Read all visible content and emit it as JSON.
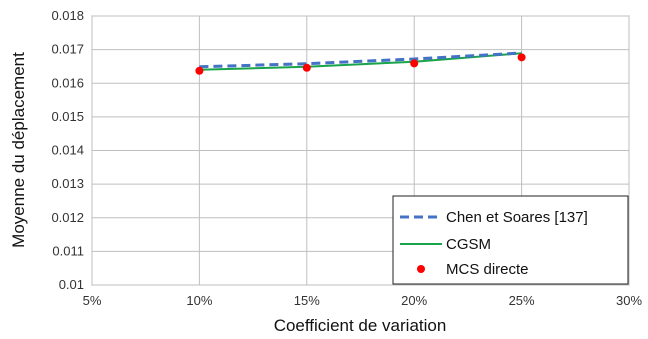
{
  "chart_data": {
    "type": "line",
    "xlabel": "Coefficient de variation",
    "ylabel": "Moyenne du déplacement",
    "x_ticks": [
      "5%",
      "10%",
      "15%",
      "20%",
      "25%",
      "30%"
    ],
    "y_ticks": [
      "0.01",
      "0.011",
      "0.012",
      "0.013",
      "0.014",
      "0.015",
      "0.016",
      "0.017",
      "0.018"
    ],
    "xlim": [
      0.05,
      0.3
    ],
    "ylim": [
      0.01,
      0.018
    ],
    "grid": true,
    "legend_position": "bottom-right",
    "series": [
      {
        "name": "Chen et Soares [137]",
        "style": "dashed",
        "color": "#4472c4",
        "x": [
          0.1,
          0.15,
          0.2,
          0.25
        ],
        "y": [
          0.01649,
          0.01658,
          0.01672,
          0.0169
        ]
      },
      {
        "name": "CGSM",
        "style": "solid",
        "color": "#19a34a",
        "x": [
          0.1,
          0.15,
          0.2,
          0.25
        ],
        "y": [
          0.0164,
          0.01649,
          0.01664,
          0.01689
        ]
      },
      {
        "name": "MCS directe",
        "style": "markers",
        "color": "#ff0000",
        "x": [
          0.1,
          0.15,
          0.2,
          0.25
        ],
        "y": [
          0.01637,
          0.01646,
          0.01659,
          0.01677
        ]
      }
    ]
  }
}
